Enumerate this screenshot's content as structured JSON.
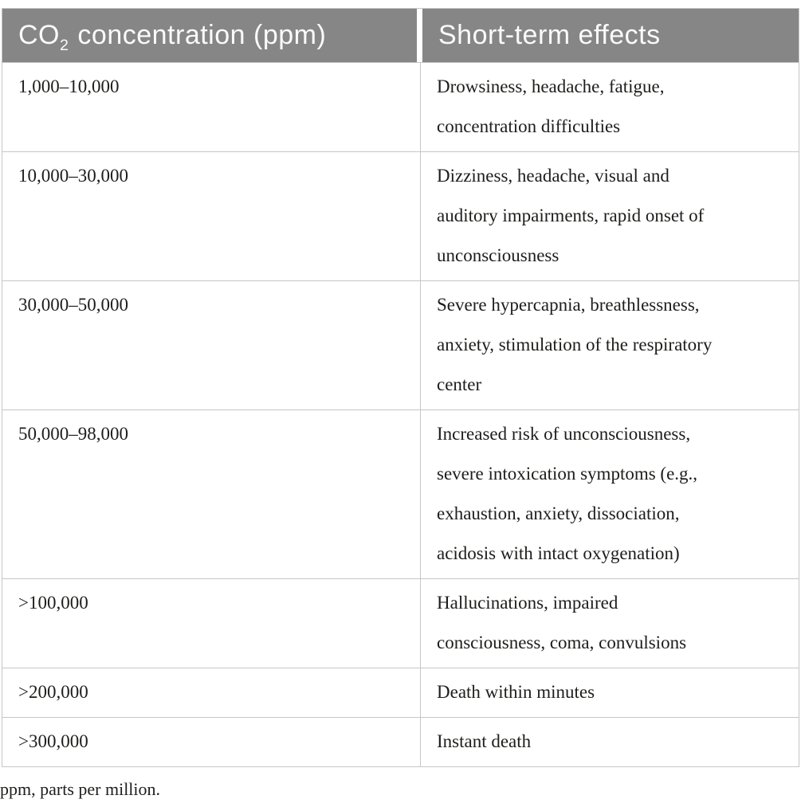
{
  "theme": {
    "header_bg": "#868686",
    "header_text": "#fafafa",
    "body_text": "#1d1d1b",
    "border": "#c6c6c6",
    "background": "#ffffff"
  },
  "table": {
    "header": {
      "co2_prefix": "CO",
      "co2_sub": "2",
      "col1_rest": " concentration (ppm)",
      "col2": "Short-term effects"
    },
    "rows": [
      {
        "concentration": "1,000–10,000",
        "effects": [
          "Drowsiness, headache, fatigue,",
          "concentration difficulties"
        ]
      },
      {
        "concentration": "10,000–30,000",
        "effects": [
          "Dizziness, headache, visual and",
          "auditory impairments, rapid onset of",
          "unconsciousness"
        ]
      },
      {
        "concentration": "30,000–50,000",
        "effects": [
          "Severe hypercapnia, breathlessness,",
          "anxiety, stimulation of the respiratory",
          "center"
        ]
      },
      {
        "concentration": "50,000–98,000",
        "effects": [
          "Increased risk of unconsciousness,",
          "severe intoxication symptoms (e.g.,",
          "exhaustion, anxiety, dissociation,",
          "acidosis with intact oxygenation)"
        ]
      },
      {
        "concentration": ">100,000",
        "effects": [
          "Hallucinations, impaired",
          "consciousness, coma, convulsions"
        ]
      },
      {
        "concentration": ">200,000",
        "effects": [
          "Death within minutes"
        ]
      },
      {
        "concentration": ">300,000",
        "effects": [
          "Instant death"
        ]
      }
    ],
    "footnote": "ppm, parts per million."
  },
  "chart_data": {
    "type": "table",
    "columns": [
      "CO2 concentration (ppm)",
      "Short-term effects"
    ],
    "rows": [
      [
        "1,000–10,000",
        "Drowsiness, headache, fatigue, concentration difficulties"
      ],
      [
        "10,000–30,000",
        "Dizziness, headache, visual and auditory impairments, rapid onset of unconsciousness"
      ],
      [
        "30,000–50,000",
        "Severe hypercapnia, breathlessness, anxiety, stimulation of the respiratory center"
      ],
      [
        "50,000–98,000",
        "Increased risk of unconsciousness, severe intoxication symptoms (e.g., exhaustion, anxiety, dissociation, acidosis with intact oxygenation)"
      ],
      [
        ">100,000",
        "Hallucinations, impaired consciousness, coma, convulsions"
      ],
      [
        ">200,000",
        "Death within minutes"
      ],
      [
        ">300,000",
        "Instant death"
      ]
    ],
    "footnote": "ppm, parts per million."
  }
}
